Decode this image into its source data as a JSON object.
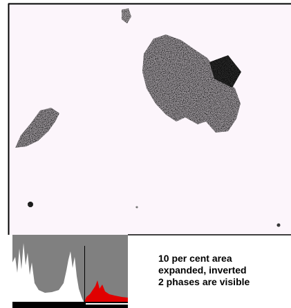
{
  "caption": {
    "lines": [
      "10 per cent area",
      "expanded, inverted",
      "2 phases are visible"
    ]
  }
}
